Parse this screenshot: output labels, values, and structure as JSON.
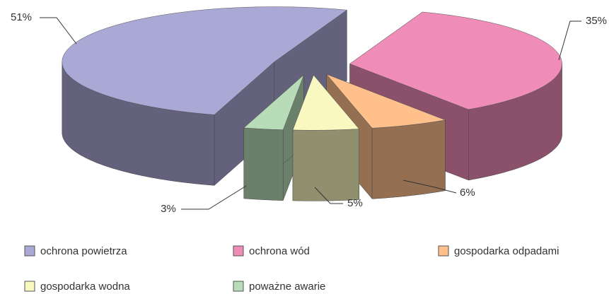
{
  "chart_data": {
    "type": "pie",
    "categories": [
      "ochrona wód",
      "gospodarka odpadami",
      "gospodarka wodna",
      "poważne awarie",
      "ochrona powietrza"
    ],
    "values": [
      35,
      6,
      5,
      3,
      51
    ],
    "value_labels": [
      "35%",
      "6%",
      "5%",
      "3%",
      "51%"
    ],
    "colors": [
      "#f08cb8",
      "#ffc08c",
      "#f8f8c0",
      "#b8dcb8",
      "#aaa8d4"
    ],
    "legend_order": [
      "ochrona powietrza",
      "ochrona wód",
      "gospodarka odpadami",
      "gospodarka wodna",
      "poważne awarie"
    ]
  }
}
